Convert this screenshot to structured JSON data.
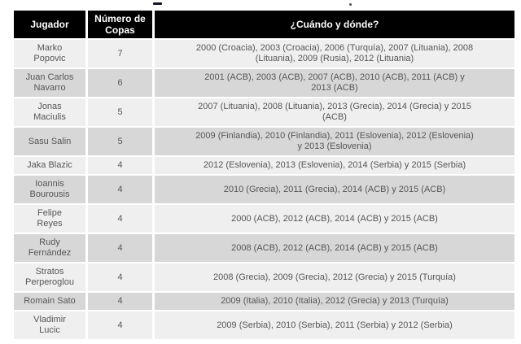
{
  "page": {
    "background_color": "#ffffff"
  },
  "table": {
    "header": {
      "background_color": "#000000",
      "text_color": "#ffffff",
      "columns": [
        {
          "label": "Jugador"
        },
        {
          "label": "Número de\nCopas"
        },
        {
          "label": "¿Cuándo y dónde?"
        }
      ]
    },
    "body": {
      "text_color": "#565656",
      "row_colors_alternating": [
        "#efefef",
        "#d7d7d7"
      ],
      "rows": [
        {
          "jugador": "Marko\nPopovic",
          "copas": "7",
          "cuando": "2000 (Croacia), 2003 (Croacia), 2006 (Turquía), 2007 (Lituania), 2008\n(Lituania), 2009 (Rusia), 2012 (Lituania)"
        },
        {
          "jugador": "Juan Carlos\nNavarro",
          "copas": "6",
          "cuando": "2001 (ACB), 2003 (ACB), 2007 (ACB), 2010 (ACB), 2011 (ACB) y\n2013 (ACB)"
        },
        {
          "jugador": "Jonas\nMaciulis",
          "copas": "5",
          "cuando": "2007 (Lituania), 2008 (Lituania), 2013 (Grecia), 2014 (Grecia) y 2015\n(ACB)"
        },
        {
          "jugador": "Sasu Salin",
          "copas": "5",
          "cuando": "2009 (Finlandia), 2010 (Finlandia), 2011 (Eslovenia), 2012 (Eslovenia)\ny 2013 (Eslovenia)"
        },
        {
          "jugador": "Jaka Blazic",
          "copas": "4",
          "cuando": "2012 (Eslovenia), 2013 (Eslovenia), 2014 (Serbia) y 2015 (Serbia)"
        },
        {
          "jugador": "Ioannis\nBourousis",
          "copas": "4",
          "cuando": "2010 (Grecia), 2011 (Grecia), 2014 (ACB) y 2015 (ACB)"
        },
        {
          "jugador": "Felipe\nReyes",
          "copas": "4",
          "cuando": "2000 (ACB), 2012 (ACB), 2014 (ACB) y 2015 (ACB)"
        },
        {
          "jugador": "Rudy\nFernández",
          "copas": "4",
          "cuando": "2008 (ACB), 2012 (ACB), 2014 (ACB) y 2015 (ACB)"
        },
        {
          "jugador": "Stratos\nPerperoglou",
          "copas": "4",
          "cuando": "2008 (Grecia), 2009 (Grecia), 2012 (Grecia) y 2015 (Turquía)"
        },
        {
          "jugador": "Romain Sato",
          "copas": "4",
          "cuando": "2009 (Italia), 2010 (Italia), 2012 (Grecia) y 2013 (Turquía)"
        },
        {
          "jugador": "Vladimir\nLucic",
          "copas": "4",
          "cuando": "2009 (Serbia), 2010 (Serbia), 2011 (Serbia) y 2012 (Serbia)"
        }
      ]
    }
  }
}
